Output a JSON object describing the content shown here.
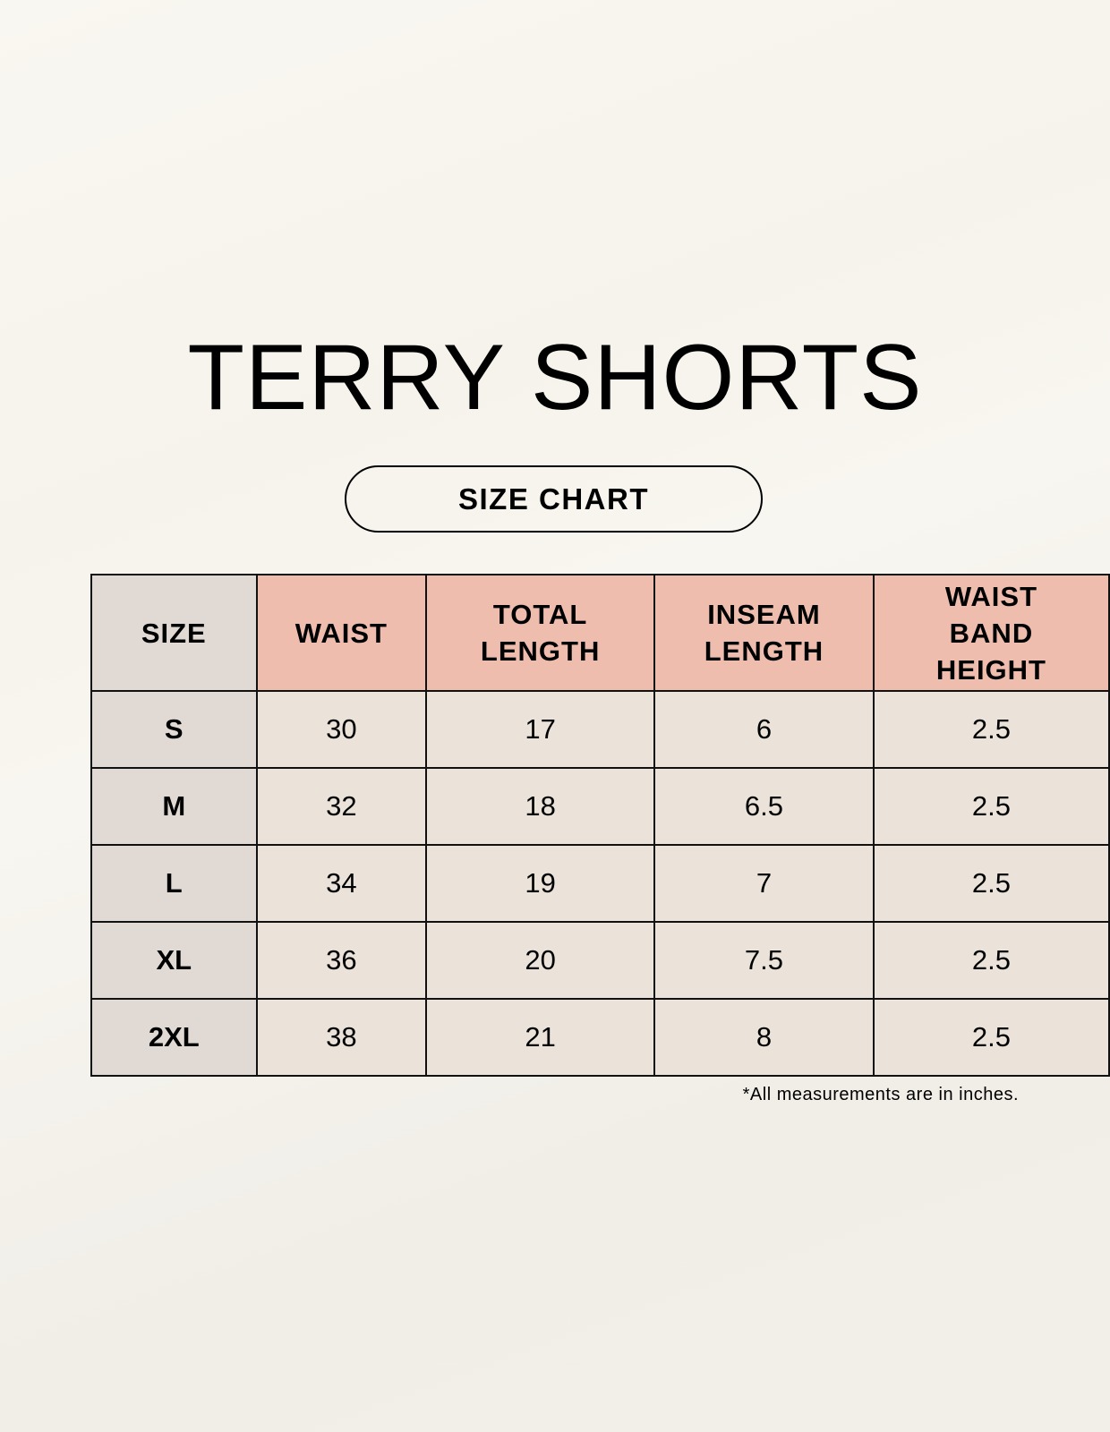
{
  "title": "TERRY SHORTS",
  "subtitle": "SIZE CHART",
  "colors": {
    "header": "#eebdae",
    "size_column": "#e1d9d4",
    "cells": "#ebe3d9"
  },
  "table": {
    "headers": [
      "SIZE",
      "WAIST",
      "TOTAL LENGTH",
      "INSEAM LENGTH",
      "WAIST BAND HEIGHT"
    ],
    "rows": [
      [
        "S",
        "30",
        "17",
        "6",
        "2.5"
      ],
      [
        "M",
        "32",
        "18",
        "6.5",
        "2.5"
      ],
      [
        "L",
        "34",
        "19",
        "7",
        "2.5"
      ],
      [
        "XL",
        "36",
        "20",
        "7.5",
        "2.5"
      ],
      [
        "2XL",
        "38",
        "21",
        "8",
        "2.5"
      ]
    ]
  },
  "note": "*All measurements are in inches."
}
